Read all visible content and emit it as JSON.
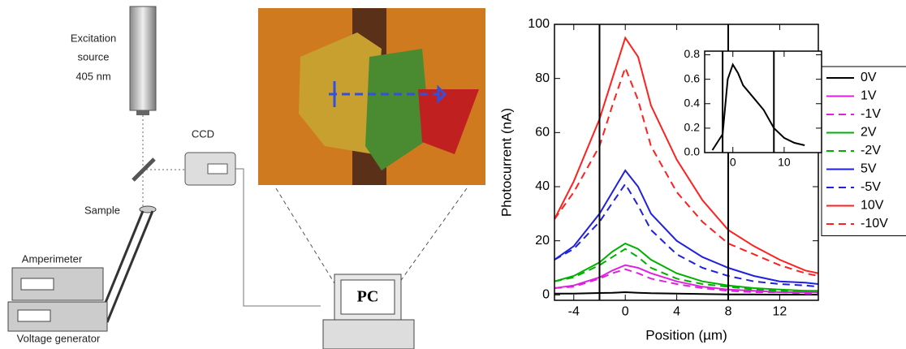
{
  "diagram": {
    "source_label": [
      "Excitation",
      "source",
      "405 nm"
    ],
    "ccd_label": "CCD",
    "sample_label": "Sample",
    "amperimeter_label": "Amperimeter",
    "generator_label": "Voltage generator",
    "pc_label": "PC"
  },
  "chart_data": [
    {
      "type": "line",
      "xlabel": "Position (µm)",
      "ylabel": "Photocurrent (nA)",
      "x": [
        -5.5,
        -4,
        -2,
        -1,
        0,
        1,
        2,
        4,
        6,
        8,
        10,
        12,
        14,
        15
      ],
      "series": [
        {
          "name": "0V",
          "color": "#000000",
          "dash": false,
          "values": [
            0.5,
            0.5,
            0.7,
            0.8,
            1,
            0.8,
            0.6,
            0.5,
            0.3,
            0.2,
            0.2,
            0.1,
            0.1,
            0.1
          ]
        },
        {
          "name": "1V",
          "color": "#e020e0",
          "dash": false,
          "values": [
            2.5,
            3.5,
            6.5,
            9,
            11,
            10,
            8,
            5,
            3,
            2,
            1.5,
            1,
            1,
            1
          ]
        },
        {
          "name": "-1V",
          "color": "#e020e0",
          "dash": true,
          "values": [
            2.5,
            3,
            6,
            8,
            9.5,
            8,
            6,
            4,
            2.5,
            1.5,
            1,
            1,
            0.5,
            0.5
          ]
        },
        {
          "name": "2V",
          "color": "#00b000",
          "dash": false,
          "values": [
            5,
            7,
            12,
            16,
            19,
            17,
            13,
            8,
            5,
            3.5,
            2.5,
            2,
            1.5,
            1.5
          ]
        },
        {
          "name": "-2V",
          "color": "#00b000",
          "dash": true,
          "values": [
            5,
            6.5,
            11,
            14,
            17,
            14,
            10,
            6,
            4,
            3,
            2,
            1.5,
            1.5,
            1
          ]
        },
        {
          "name": "5V",
          "color": "#2020e0",
          "dash": false,
          "values": [
            13,
            18,
            30,
            38,
            46,
            40,
            30,
            20,
            14,
            10,
            7,
            5,
            4.5,
            4
          ]
        },
        {
          "name": "-5V",
          "color": "#2020e0",
          "dash": true,
          "values": [
            13,
            17,
            27,
            34,
            41,
            33,
            24,
            15,
            10,
            7,
            5,
            4,
            3.5,
            3
          ]
        },
        {
          "name": "10V",
          "color": "#ff2020",
          "dash": false,
          "values": [
            28,
            42,
            65,
            80,
            95,
            88,
            70,
            50,
            35,
            24,
            18,
            13,
            9,
            8
          ]
        },
        {
          "name": "-10V",
          "color": "#ff2020",
          "dash": true,
          "values": [
            28,
            38,
            55,
            70,
            84,
            72,
            55,
            38,
            27,
            19,
            15,
            11,
            8,
            7
          ]
        }
      ],
      "vlines": [
        -2,
        8
      ],
      "xlim": [
        -5.5,
        15
      ],
      "ylim": [
        -2,
        100
      ],
      "xticks": [
        -4,
        0,
        4,
        8,
        12
      ],
      "yticks": [
        0,
        20,
        40,
        60,
        80,
        100
      ],
      "legend": "right"
    },
    {
      "type": "line",
      "x": [
        -4,
        -2,
        -1,
        0,
        1,
        2,
        4,
        6,
        8,
        10,
        12,
        14
      ],
      "series": [
        {
          "color": "#000000",
          "dash": false,
          "values": [
            0.02,
            0.15,
            0.6,
            0.72,
            0.65,
            0.55,
            0.45,
            0.35,
            0.2,
            0.12,
            0.08,
            0.06
          ]
        }
      ],
      "vlines": [
        -2,
        8
      ],
      "xlim": [
        -5.5,
        17.3
      ],
      "ylim": [
        0,
        0.83
      ],
      "xticks": [
        0,
        10
      ],
      "yticks": [
        {
          "value": 0,
          "label": "0.0"
        },
        0.2,
        0.4,
        0.6,
        0.8
      ]
    }
  ]
}
